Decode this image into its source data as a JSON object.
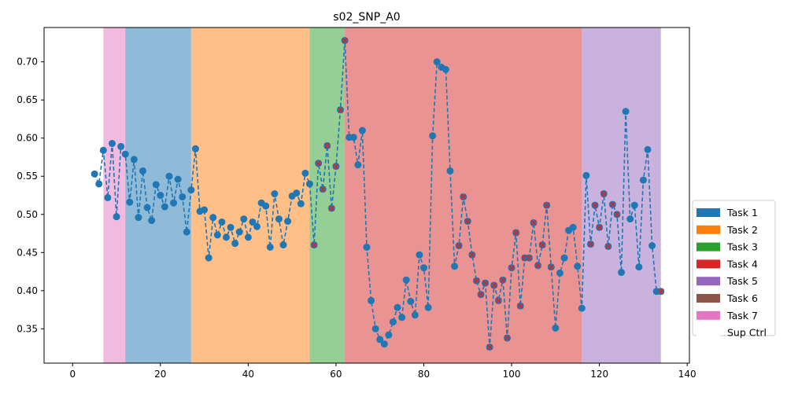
{
  "chart_data": {
    "type": "line",
    "title": "s02_SNP_A0",
    "xlabel": "",
    "ylabel": "",
    "xlim": [
      -6.5,
      140.5
    ],
    "ylim": [
      0.305,
      0.745
    ],
    "xticks": [
      0,
      20,
      40,
      60,
      80,
      100,
      120,
      140
    ],
    "yticks": [
      0.35,
      0.4,
      0.45,
      0.5,
      0.55,
      0.6,
      0.65,
      0.7
    ],
    "grid": false,
    "legend_position": "right",
    "legend": [
      {
        "label": "Task 1",
        "color": "#1f77b4"
      },
      {
        "label": "Task 2",
        "color": "#ff7f0e"
      },
      {
        "label": "Task 3",
        "color": "#2ca02c"
      },
      {
        "label": "Task 4",
        "color": "#d62728"
      },
      {
        "label": "Task 5",
        "color": "#9467bd"
      },
      {
        "label": "Task 6",
        "color": "#8c564b"
      },
      {
        "label": "Task 7",
        "color": "#e377c2"
      },
      {
        "label": "Sup Ctrl",
        "color": "#ffffff"
      }
    ],
    "regions": [
      {
        "task": "Task 7",
        "x_start": 7,
        "x_end": 12,
        "color": "#e377c2"
      },
      {
        "task": "Task 1",
        "x_start": 12,
        "x_end": 27,
        "color": "#1f77b4"
      },
      {
        "task": "Task 2",
        "x_start": 27,
        "x_end": 54,
        "color": "#ff7f0e"
      },
      {
        "task": "Task 3",
        "x_start": 54,
        "x_end": 62,
        "color": "#2ca02c"
      },
      {
        "task": "Task 4",
        "x_start": 62,
        "x_end": 116,
        "color": "#d62728"
      },
      {
        "task": "Task 5",
        "x_start": 116,
        "x_end": 134,
        "color": "#9467bd"
      }
    ],
    "series": [
      {
        "line_color": "#1f77b4",
        "x": [
          5,
          6,
          7,
          8,
          9,
          10,
          11,
          12,
          13,
          14,
          15,
          16,
          17,
          18,
          19,
          20,
          21,
          22,
          23,
          24,
          25,
          26,
          27,
          28,
          29,
          30,
          31,
          32,
          33,
          34,
          35,
          36,
          37,
          38,
          39,
          40,
          41,
          42,
          43,
          44,
          45,
          46,
          47,
          48,
          49,
          50,
          51,
          52,
          53,
          54,
          55,
          56,
          57,
          58,
          59,
          60,
          61,
          62,
          63,
          64,
          65,
          66,
          67,
          68,
          69,
          70,
          71,
          72,
          73,
          74,
          75,
          76,
          77,
          78,
          79,
          80,
          81,
          82,
          83,
          84,
          85,
          86,
          87,
          88,
          89,
          90,
          91,
          92,
          93,
          94,
          95,
          96,
          97,
          98,
          99,
          100,
          101,
          102,
          103,
          104,
          105,
          106,
          107,
          108,
          109,
          110,
          111,
          112,
          113,
          114,
          115,
          116,
          117,
          118,
          119,
          120,
          121,
          122,
          123,
          124,
          125,
          126,
          127,
          128,
          129,
          130,
          131,
          132,
          133,
          134
        ],
        "y": [
          0.553,
          0.54,
          0.584,
          0.522,
          0.593,
          0.497,
          0.589,
          0.579,
          0.516,
          0.572,
          0.496,
          0.557,
          0.509,
          0.492,
          0.539,
          0.525,
          0.51,
          0.55,
          0.515,
          0.546,
          0.523,
          0.477,
          0.532,
          0.586,
          0.504,
          0.506,
          0.443,
          0.496,
          0.473,
          0.49,
          0.47,
          0.483,
          0.462,
          0.477,
          0.494,
          0.47,
          0.49,
          0.484,
          0.515,
          0.511,
          0.457,
          0.527,
          0.494,
          0.46,
          0.491,
          0.524,
          0.528,
          0.514,
          0.554,
          0.54,
          0.46,
          0.567,
          0.533,
          0.59,
          0.508,
          0.563,
          0.637,
          0.728,
          0.601,
          0.601,
          0.565,
          0.61,
          0.457,
          0.387,
          0.35,
          0.336,
          0.33,
          0.342,
          0.359,
          0.378,
          0.365,
          0.414,
          0.386,
          0.368,
          0.447,
          0.43,
          0.378,
          0.603,
          0.7,
          0.693,
          0.69,
          0.557,
          0.432,
          0.459,
          0.523,
          0.491,
          0.447,
          0.413,
          0.395,
          0.41,
          0.326,
          0.407,
          0.387,
          0.414,
          0.338,
          0.43,
          0.476,
          0.38,
          0.443,
          0.443,
          0.489,
          0.433,
          0.46,
          0.512,
          0.431,
          0.351,
          0.423,
          0.443,
          0.479,
          0.483,
          0.432,
          0.377,
          0.551,
          0.461,
          0.512,
          0.483,
          0.527,
          0.458,
          0.513,
          0.5,
          0.424,
          0.635,
          0.494,
          0.512,
          0.431,
          0.545,
          0.585,
          0.459,
          0.399,
          0.399
        ],
        "crossed_x": [
          55,
          56,
          57,
          58,
          59,
          60,
          61,
          62,
          88,
          89,
          90,
          91,
          92,
          93,
          94,
          95,
          96,
          97,
          98,
          99,
          100,
          101,
          102,
          103,
          104,
          105,
          106,
          107,
          108,
          109,
          118,
          119,
          120,
          121,
          122,
          123,
          124,
          134
        ]
      }
    ]
  }
}
